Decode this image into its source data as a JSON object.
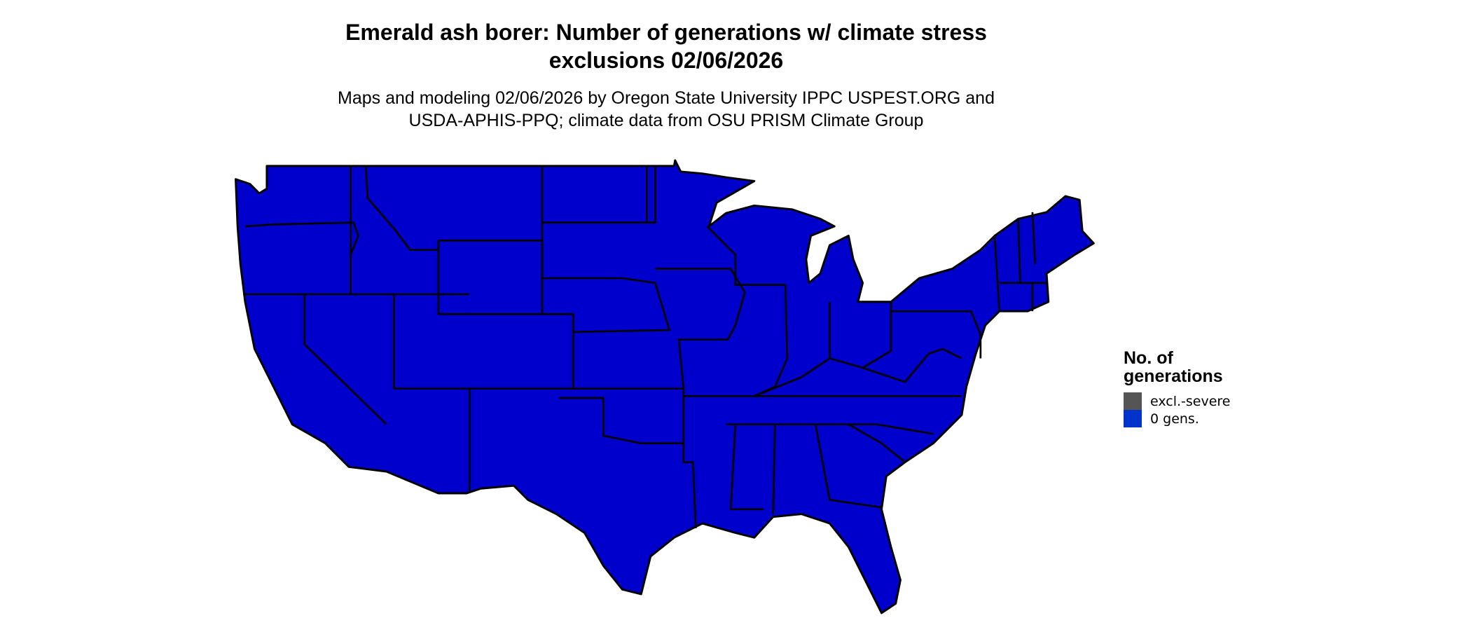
{
  "title_line1": "Emerald ash borer: Number of generations w/ climate stress",
  "title_line2": "exclusions 02/06/2026",
  "subtitle_line1": "Maps and modeling 02/06/2026 by Oregon State University IPPC USPEST.ORG and",
  "subtitle_line2": "USDA-APHIS-PPQ; climate data from OSU PRISM Climate Group",
  "map": {
    "region": "Contiguous United States",
    "fill_color": "#0000CC",
    "border_color": "#000000"
  },
  "legend": {
    "title_line1": "No. of",
    "title_line2": "generations",
    "items": [
      {
        "label": "excl.-severe",
        "color": "#555555"
      },
      {
        "label": "0 gens.",
        "color": "#0033CC"
      }
    ]
  }
}
